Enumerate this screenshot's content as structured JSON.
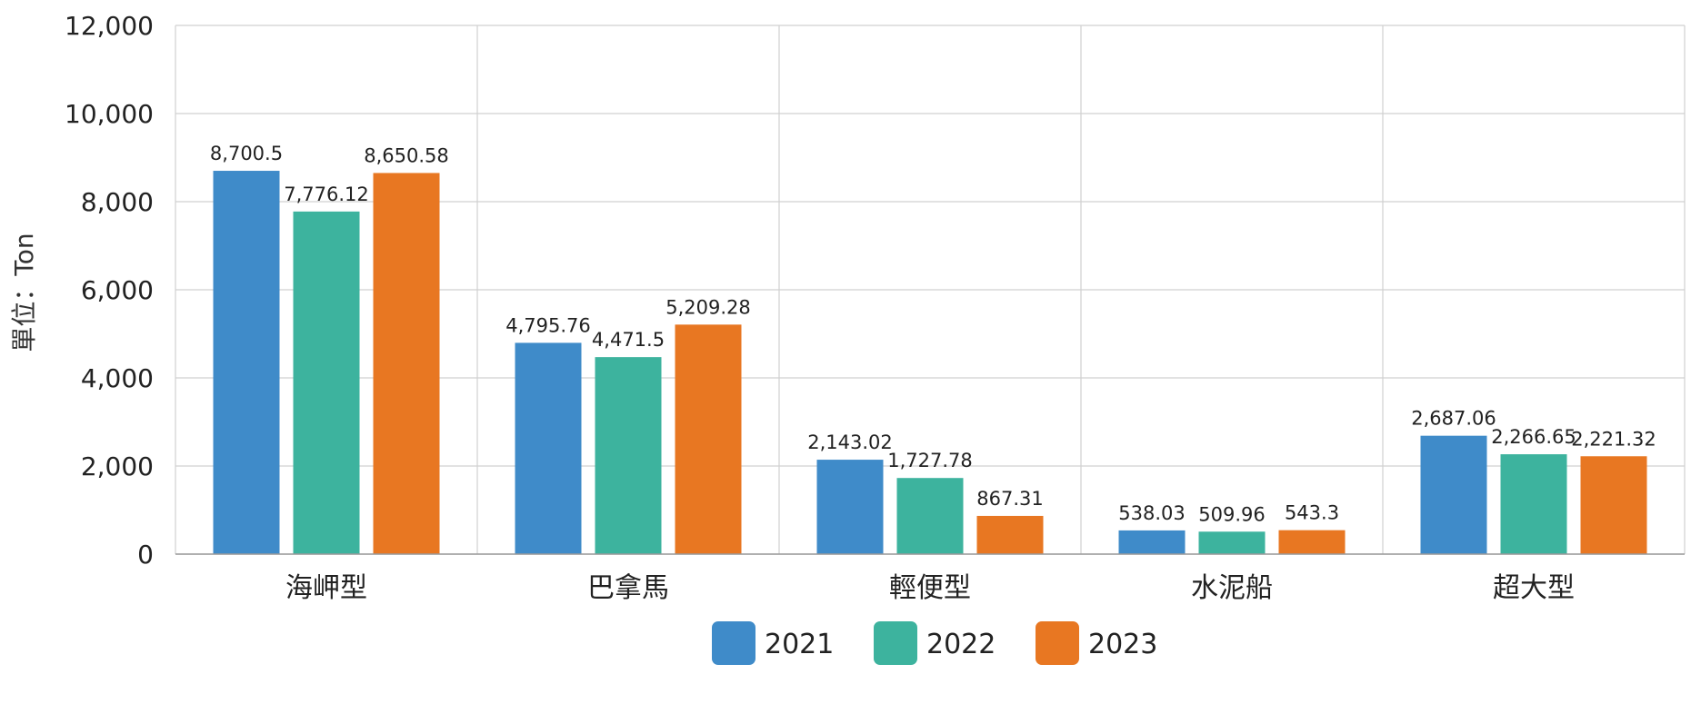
{
  "chart_data": {
    "type": "bar",
    "ylabel": "單位：Ton",
    "xlabel": "",
    "title": "",
    "ylim": [
      0,
      12000
    ],
    "yticks": [
      "0",
      "2,000",
      "4,000",
      "6,000",
      "8,000",
      "10,000",
      "12,000"
    ],
    "ytick_values": [
      0,
      2000,
      4000,
      6000,
      8000,
      10000,
      12000
    ],
    "grid": true,
    "legend_position": "bottom",
    "categories": [
      "海岬型",
      "巴拿馬",
      "輕便型",
      "水泥船",
      "超大型"
    ],
    "series": [
      {
        "name": "2021",
        "color": "#3F8BC9",
        "values": [
          8700.5,
          4795.76,
          2143.02,
          538.03,
          2687.06
        ],
        "labels": [
          "8,700.5",
          "4,795.76",
          "2,143.02",
          "538.03",
          "2,687.06"
        ]
      },
      {
        "name": "2022",
        "color": "#3DB39E",
        "values": [
          7776.12,
          4471.5,
          1727.78,
          509.96,
          2266.65
        ],
        "labels": [
          "7,776.12",
          "4,471.5",
          "1,727.78",
          "509.96",
          "2,266.65"
        ]
      },
      {
        "name": "2023",
        "color": "#E87722",
        "values": [
          8650.58,
          5209.28,
          867.31,
          543.3,
          2221.32
        ],
        "labels": [
          "8,650.58",
          "5,209.28",
          "867.31",
          "543.3",
          "2,221.32"
        ]
      }
    ]
  }
}
